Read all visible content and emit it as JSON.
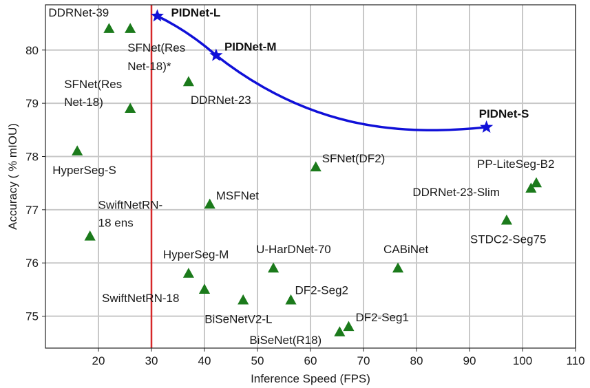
{
  "chart_data": {
    "type": "scatter",
    "xlabel": "Inference Speed (FPS)",
    "ylabel": "Accuracy ( % mIOU)",
    "xlim": [
      10,
      110
    ],
    "ylim": [
      74.4,
      80.85
    ],
    "x_ticks": [
      20,
      30,
      40,
      50,
      60,
      70,
      80,
      90,
      100,
      110
    ],
    "y_ticks": [
      75,
      76,
      77,
      78,
      79,
      80
    ],
    "x_tick_labels": [
      "20",
      "30",
      "40",
      "50",
      "60",
      "70",
      "80",
      "90",
      "100",
      "110"
    ],
    "y_tick_labels": [
      "75",
      "76",
      "77",
      "78",
      "79",
      "80"
    ],
    "grid": true,
    "vertical_reference_line": {
      "x": 30,
      "color": "#d62728"
    },
    "colors": {
      "triangles": "#1b7a1b",
      "pidnet": "#1010d8",
      "grid": "#c8c8c8"
    },
    "series": [
      {
        "marker": "triangle",
        "points": [
          {
            "label": "DDRNet-39",
            "x": 22,
            "y": 80.4
          },
          {
            "label": "SFNet(Res Net-18)*",
            "label_lines": [
              "SFNet(Res",
              "Net-18)*"
            ],
            "x": 26,
            "y": 80.4
          },
          {
            "label": "DDRNet-23",
            "x": 37,
            "y": 79.4
          },
          {
            "label": "SFNet(Res Net-18)",
            "label_lines": [
              "SFNet(Res",
              "Net-18)"
            ],
            "x": 26,
            "y": 78.9
          },
          {
            "label": "HyperSeg-S",
            "x": 16,
            "y": 78.1
          },
          {
            "label": "SFNet(DF2)",
            "x": 61,
            "y": 77.8
          },
          {
            "label": "PP-LiteSeg-B2",
            "x": 102.6,
            "y": 77.5
          },
          {
            "label": "DDRNet-23-Slim",
            "x": 101.6,
            "y": 77.4
          },
          {
            "label": "MSFNet",
            "x": 41,
            "y": 77.1
          },
          {
            "label": "STDC2-Seg75",
            "x": 97,
            "y": 76.8
          },
          {
            "label": "SwiftNetRN-18 ens",
            "label_lines": [
              "SwiftNetRN-",
              "18 ens"
            ],
            "x": 18.4,
            "y": 76.5
          },
          {
            "label": "U-HarDNet-70",
            "x": 53,
            "y": 75.9
          },
          {
            "label": "CABiNet",
            "x": 76.5,
            "y": 75.9
          },
          {
            "label": "HyperSeg-M",
            "x": 37,
            "y": 75.8
          },
          {
            "label": "SwiftNetRN-18",
            "x": 40,
            "y": 75.5
          },
          {
            "label": "BiSeNetV2-L",
            "x": 47.3,
            "y": 75.3
          },
          {
            "label": "DF2-Seg2",
            "x": 56.3,
            "y": 75.3
          },
          {
            "label": "DF2-Seg1",
            "x": 67.2,
            "y": 74.8
          },
          {
            "label": "BiSeNet(R18)",
            "x": 65.5,
            "y": 74.7
          }
        ]
      },
      {
        "marker": "star",
        "points": [
          {
            "label": "PIDNet-L",
            "x": 31.1,
            "y": 80.64
          },
          {
            "label": "PIDNet-M",
            "x": 42.2,
            "y": 79.9
          },
          {
            "label": "PIDNet-S",
            "x": 93.2,
            "y": 78.55
          }
        ]
      }
    ]
  }
}
